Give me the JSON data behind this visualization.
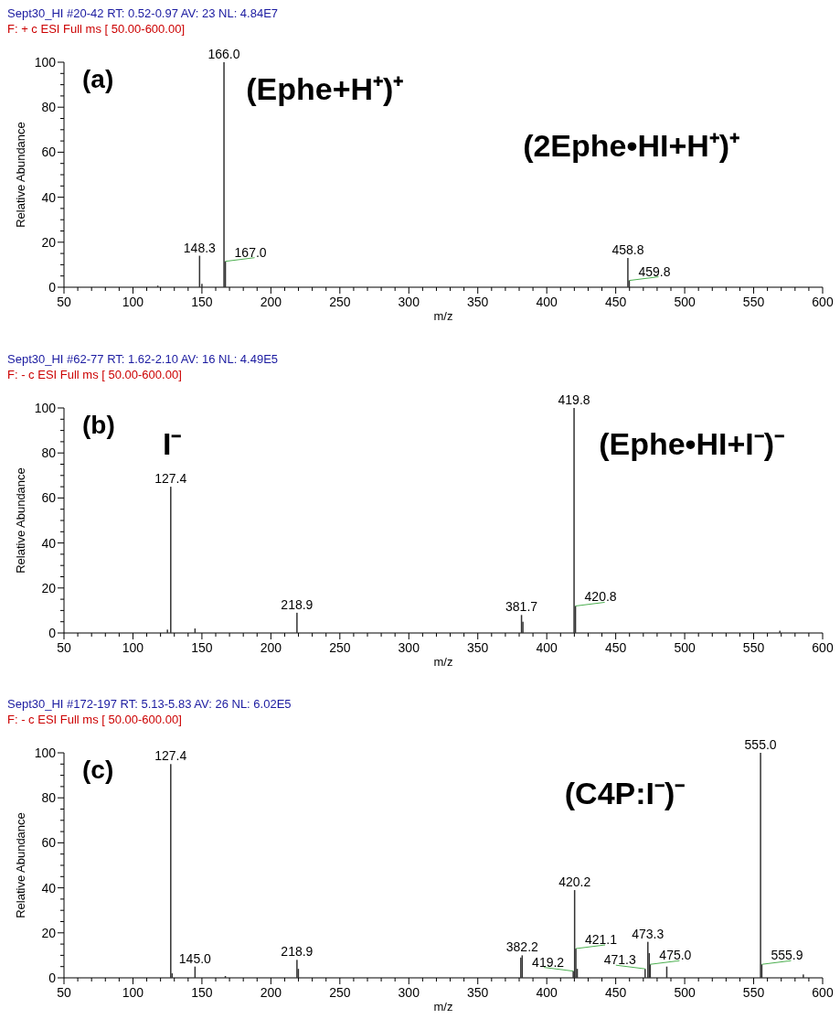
{
  "chart_data": [
    {
      "type": "bar",
      "title": "Sept30_HI #20-42  RT: 0.52-0.97  AV: 23  NL: 4.84E7",
      "subtitle": "F: + c ESI Full ms [ 50.00-600.00]",
      "xlabel": "m/z",
      "ylabel": "Relative Abundance",
      "color": "#333333",
      "x": [
        118.0,
        148.3,
        150.0,
        166.0,
        167.0,
        458.8,
        459.8
      ],
      "values": [
        0.7,
        14,
        1.5,
        100,
        11.5,
        13,
        3
      ],
      "xlim": [
        50,
        600
      ],
      "xticks": [
        50,
        100,
        150,
        200,
        250,
        300,
        350,
        400,
        450,
        500,
        550,
        600
      ],
      "ylim": [
        0,
        100
      ],
      "yticks": [
        0,
        20,
        40,
        60,
        80,
        100
      ],
      "annotations": [
        "(a)",
        "(Ephe+H⁺)⁺",
        "(2Ephe•HI+H⁺)⁺",
        {
          "text": "148.3",
          "x": 148.3,
          "y": 14
        },
        {
          "text": "166.0",
          "x": 166.0,
          "y": 100
        },
        {
          "text": "167.0",
          "x": 167.0,
          "y": 11.5
        },
        {
          "text": "458.8",
          "x": 458.8,
          "y": 13
        },
        {
          "text": "459.8",
          "x": 459.8,
          "y": 3
        }
      ]
    },
    {
      "type": "bar",
      "title": "Sept30_HI #62-77  RT: 1.62-2.10  AV: 16  NL: 4.49E5",
      "subtitle": "F: - c ESI Full ms [ 50.00-600.00]",
      "xlabel": "m/z",
      "ylabel": "Relative Abundance",
      "color": "#333333",
      "x": [
        125.0,
        127.4,
        145.0,
        218.9,
        381.7,
        382.7,
        419.8,
        420.8,
        569.0
      ],
      "values": [
        1.5,
        65,
        2,
        9,
        8,
        5,
        100,
        12,
        1
      ],
      "xlim": [
        50,
        600
      ],
      "xticks": [
        50,
        100,
        150,
        200,
        250,
        300,
        350,
        400,
        450,
        500,
        550,
        600
      ],
      "ylim": [
        0,
        100
      ],
      "yticks": [
        0,
        20,
        40,
        60,
        80,
        100
      ],
      "annotations": [
        "(b)",
        "I⁻",
        "(Ephe•HI+I⁻)⁻",
        {
          "text": "127.4",
          "x": 127.4,
          "y": 65
        },
        {
          "text": "218.9",
          "x": 218.9,
          "y": 9
        },
        {
          "text": "381.7",
          "x": 381.7,
          "y": 8
        },
        {
          "text": "419.8",
          "x": 419.8,
          "y": 100
        },
        {
          "text": "420.8",
          "x": 420.8,
          "y": 12
        }
      ]
    },
    {
      "type": "bar",
      "title": "Sept30_HI #172-197  RT: 5.13-5.83  AV: 26  NL: 6.02E5",
      "subtitle": "F: - c ESI Full ms [ 50.00-600.00]",
      "xlabel": "m/z",
      "ylabel": "Relative Abundance",
      "color": "#333333",
      "x": [
        127.4,
        128.4,
        145.0,
        167.0,
        218.9,
        219.9,
        381.2,
        382.2,
        419.2,
        420.2,
        421.1,
        422.1,
        471.3,
        473.3,
        474.3,
        475.0,
        487.0,
        555.0,
        555.9,
        586.0
      ],
      "values": [
        95,
        2,
        5,
        0.8,
        8,
        4,
        9,
        10,
        3,
        39,
        13,
        4,
        4,
        16,
        11,
        6,
        5,
        100,
        6,
        1.5
      ],
      "xlim": [
        50,
        600
      ],
      "xticks": [
        50,
        100,
        150,
        200,
        250,
        300,
        350,
        400,
        450,
        500,
        550,
        600
      ],
      "ylim": [
        0,
        100
      ],
      "yticks": [
        0,
        20,
        40,
        60,
        80,
        100
      ],
      "annotations": [
        "(c)",
        "(C4P:I⁻)⁻",
        {
          "text": "127.4",
          "x": 127.4,
          "y": 95
        },
        {
          "text": "145.0",
          "x": 145.0,
          "y": 5
        },
        {
          "text": "218.9",
          "x": 218.9,
          "y": 8
        },
        {
          "text": "382.2",
          "x": 382.2,
          "y": 10
        },
        {
          "text": "419.2",
          "x": 419.2,
          "y": 3
        },
        {
          "text": "420.2",
          "x": 420.2,
          "y": 39
        },
        {
          "text": "421.1",
          "x": 421.1,
          "y": 13
        },
        {
          "text": "471.3",
          "x": 471.3,
          "y": 4
        },
        {
          "text": "473.3",
          "x": 473.3,
          "y": 16
        },
        {
          "text": "475.0",
          "x": 475.0,
          "y": 6
        },
        {
          "text": "555.0",
          "x": 555.0,
          "y": 100
        },
        {
          "text": "555.9",
          "x": 555.9,
          "y": 6
        }
      ]
    }
  ]
}
